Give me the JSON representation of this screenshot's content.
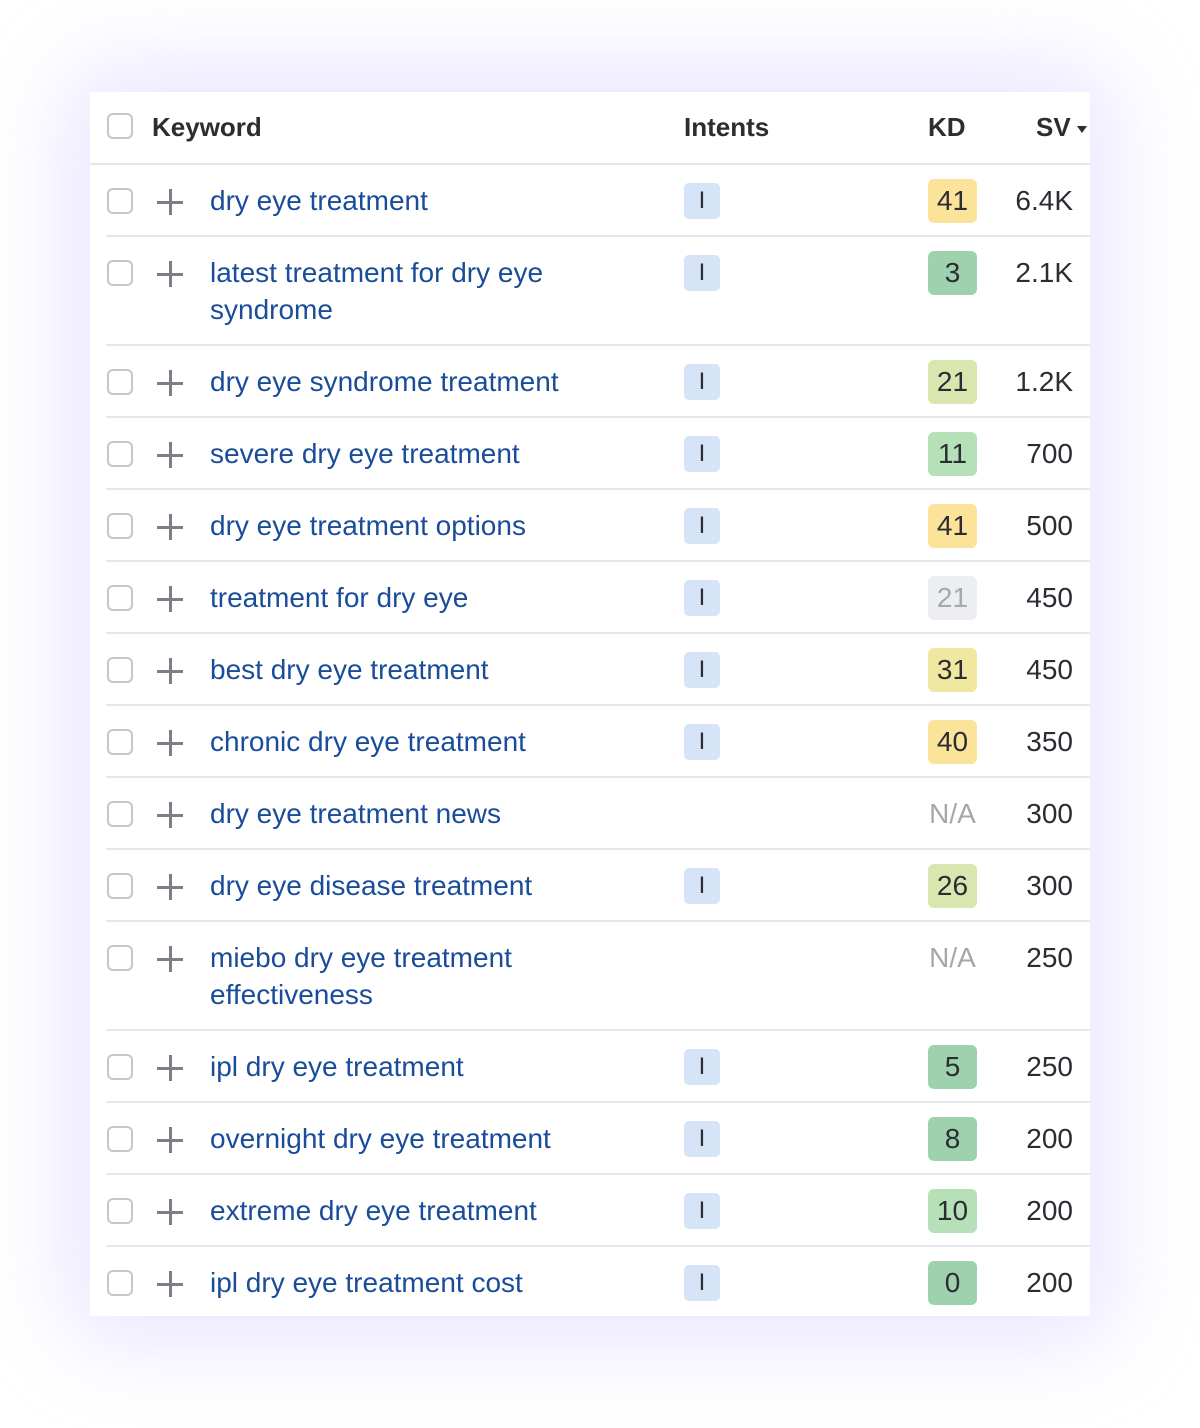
{
  "header": {
    "keyword_label": "Keyword",
    "intents_label": "Intents",
    "kd_label": "KD",
    "sv_label": "SV"
  },
  "colors": {
    "keyword_link": "#1a4d99",
    "intent_badge_bg": "#d5e4f6",
    "kd_very_easy": "#9ed1ae",
    "kd_easy": "#b6e0b8",
    "kd_possible": "#dae6b0",
    "kd_difficult": "#f0e8a0",
    "kd_hard": "#fbe49a",
    "kd_neutral": "#eceef1"
  },
  "rows": [
    {
      "keyword": "dry eye treatment",
      "intent": "I",
      "kd": "41",
      "kd_color": "#fbe49a",
      "sv": "6.4K"
    },
    {
      "keyword": "latest treatment for dry eye syndrome",
      "intent": "I",
      "kd": "3",
      "kd_color": "#9ed1ae",
      "sv": "2.1K"
    },
    {
      "keyword": "dry eye syndrome treatment",
      "intent": "I",
      "kd": "21",
      "kd_color": "#dae6b0",
      "sv": "1.2K"
    },
    {
      "keyword": "severe dry eye treatment",
      "intent": "I",
      "kd": "11",
      "kd_color": "#b6e0b8",
      "sv": "700"
    },
    {
      "keyword": "dry eye treatment options",
      "intent": "I",
      "kd": "41",
      "kd_color": "#fbe49a",
      "sv": "500"
    },
    {
      "keyword": "treatment for dry eye",
      "intent": "I",
      "kd": "21",
      "kd_color": "#eceef1",
      "kd_muted": true,
      "sv": "450"
    },
    {
      "keyword": "best dry eye treatment",
      "intent": "I",
      "kd": "31",
      "kd_color": "#f0e8a0",
      "sv": "450"
    },
    {
      "keyword": "chronic dry eye treatment",
      "intent": "I",
      "kd": "40",
      "kd_color": "#fbe49a",
      "sv": "350"
    },
    {
      "keyword": "dry eye treatment news",
      "intent": "",
      "kd": "N/A",
      "kd_color": "",
      "sv": "300"
    },
    {
      "keyword": "dry eye disease treatment",
      "intent": "I",
      "kd": "26",
      "kd_color": "#dae6b0",
      "sv": "300"
    },
    {
      "keyword": "miebo dry eye treatment effectiveness",
      "intent": "",
      "kd": "N/A",
      "kd_color": "",
      "sv": "250"
    },
    {
      "keyword": "ipl dry eye treatment",
      "intent": "I",
      "kd": "5",
      "kd_color": "#9ed1ae",
      "sv": "250"
    },
    {
      "keyword": "overnight dry eye treatment",
      "intent": "I",
      "kd": "8",
      "kd_color": "#9ed1ae",
      "sv": "200"
    },
    {
      "keyword": "extreme dry eye treatment",
      "intent": "I",
      "kd": "10",
      "kd_color": "#b6e0b8",
      "sv": "200"
    },
    {
      "keyword": "ipl dry eye treatment cost",
      "intent": "I",
      "kd": "0",
      "kd_color": "#9ed1ae",
      "sv": "200"
    }
  ]
}
